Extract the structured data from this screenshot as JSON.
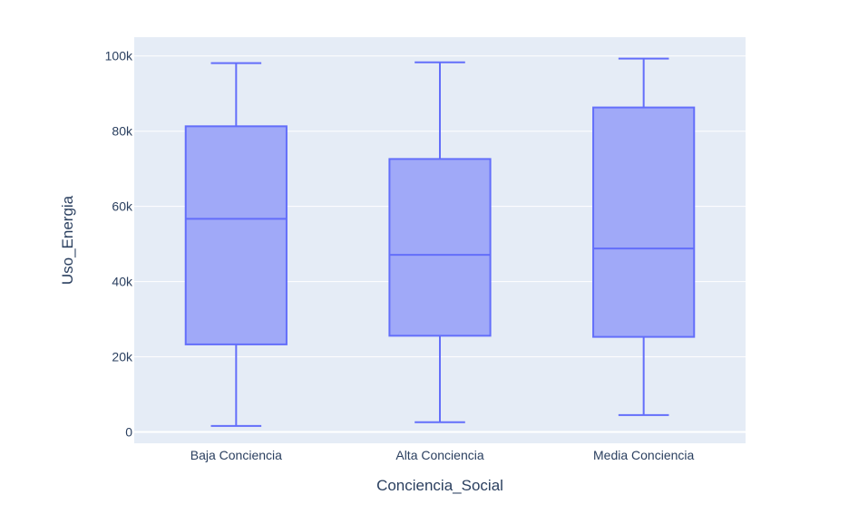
{
  "chart_data": {
    "type": "box",
    "title": "",
    "xlabel": "Conciencia_Social",
    "ylabel": "Uso_Energia",
    "ylim": [
      -3000,
      105000
    ],
    "yticks": [
      0,
      20000,
      40000,
      60000,
      80000,
      100000
    ],
    "ytick_labels": [
      "0",
      "20k",
      "40k",
      "60k",
      "80k",
      "100k"
    ],
    "categories": [
      "Baja Conciencia",
      "Alta Conciencia",
      "Media Conciencia"
    ],
    "boxes": [
      {
        "category": "Baja Conciencia",
        "min": 1600,
        "q1": 23300,
        "median": 56700,
        "q3": 81300,
        "max": 98100
      },
      {
        "category": "Alta Conciencia",
        "min": 2600,
        "q1": 25600,
        "median": 47100,
        "q3": 72600,
        "max": 98300
      },
      {
        "category": "Media Conciencia",
        "min": 4500,
        "q1": 25300,
        "median": 48800,
        "q3": 86300,
        "max": 99300
      }
    ],
    "grid": true,
    "legend": "none",
    "colors": {
      "plot_bg": "#e5ecf6",
      "grid": "#ffffff",
      "box_fill": "#a0a9f8",
      "box_line": "#636efa",
      "text": "#2a3f5f"
    }
  }
}
